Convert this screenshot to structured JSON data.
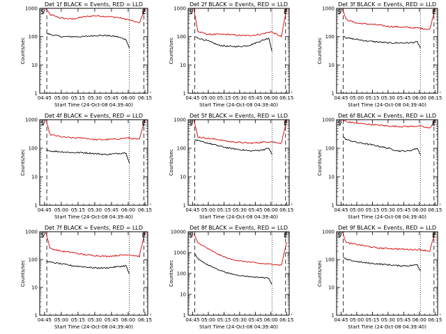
{
  "chart_data": [
    {
      "type": "line",
      "title": "Det 1f BLACK = Events, RED = LLD",
      "xlabel": "Start Time (24-Oct-08 04:39:40)",
      "ylabel": "Counts/sec",
      "y_scale": "log",
      "ylim": [
        1,
        1000
      ],
      "y_ticks": [
        "1",
        "10",
        "100",
        "1000"
      ],
      "x_ticks": [
        "04:45",
        "05:00",
        "05:15",
        "05:30",
        "05:45",
        "06:00",
        "06:15"
      ],
      "markers": [
        {
          "label": "S",
          "x": "04:40"
        },
        {
          "label": "E",
          "x": "06:14"
        }
      ],
      "vlines": [
        {
          "x": "04:47",
          "style": "dashed"
        },
        {
          "x": "06:01",
          "style": "dotted"
        },
        {
          "x": "06:14",
          "style": "dashed"
        }
      ],
      "series": [
        {
          "color": "#d40000",
          "x": [
            "04:46",
            "04:50",
            "05:00",
            "05:10",
            "05:20",
            "05:30",
            "05:40",
            "05:50",
            "06:00",
            "06:10",
            "06:15"
          ],
          "values": [
            1000,
            600,
            450,
            420,
            500,
            550,
            520,
            480,
            400,
            300,
            1000
          ]
        },
        {
          "color": "#000000",
          "x": [
            "04:47",
            "04:50",
            "05:00",
            "05:10",
            "05:20",
            "05:30",
            "05:40",
            "05:50",
            "05:58",
            "06:01"
          ],
          "values": [
            130,
            120,
            100,
            100,
            100,
            110,
            110,
            100,
            80,
            40
          ]
        }
      ]
    },
    {
      "type": "line",
      "title": "Det 2f BLACK = Events, RED = LLD",
      "xlabel": "Start Time (24-Oct-08 04:39:40)",
      "ylabel": "Counts/sec",
      "y_scale": "log",
      "ylim": [
        1,
        1000
      ],
      "y_ticks": [
        "1",
        "10",
        "100",
        "1000"
      ],
      "x_ticks": [
        "04:45",
        "05:00",
        "05:15",
        "05:30",
        "05:45",
        "06:00",
        "06:15"
      ],
      "markers": [
        {
          "label": "S",
          "x": "04:40"
        },
        {
          "label": "E",
          "x": "06:14"
        }
      ],
      "vlines": [
        {
          "x": "04:47",
          "style": "dashed"
        },
        {
          "x": "06:01",
          "style": "dotted"
        },
        {
          "x": "06:14",
          "style": "dashed"
        }
      ],
      "series": [
        {
          "color": "#d40000",
          "x": [
            "04:46",
            "04:50",
            "05:00",
            "05:10",
            "05:20",
            "05:30",
            "05:40",
            "05:50",
            "06:00",
            "06:10",
            "06:15"
          ],
          "values": [
            1000,
            150,
            120,
            120,
            120,
            110,
            110,
            120,
            150,
            100,
            1000
          ]
        },
        {
          "color": "#000000",
          "x": [
            "04:47",
            "04:50",
            "05:00",
            "05:10",
            "05:20",
            "05:30",
            "05:40",
            "05:50",
            "05:58",
            "06:01"
          ],
          "values": [
            100,
            90,
            70,
            50,
            45,
            45,
            50,
            70,
            90,
            30
          ]
        }
      ]
    },
    {
      "type": "line",
      "title": "Det 3f BLACK = Events, RED = LLD",
      "xlabel": "Start Time (24-Oct-08 04:39:40)",
      "ylabel": "Counts/sec",
      "y_scale": "log",
      "ylim": [
        1,
        1000
      ],
      "y_ticks": [
        "1",
        "10",
        "100",
        "1000"
      ],
      "x_ticks": [
        "04:45",
        "05:00",
        "05:15",
        "05:30",
        "05:45",
        "06:00",
        "06:15"
      ],
      "markers": [
        {
          "label": "S",
          "x": "04:40"
        },
        {
          "label": "E",
          "x": "06:14"
        }
      ],
      "vlines": [
        {
          "x": "04:47",
          "style": "dashed"
        },
        {
          "x": "06:01",
          "style": "dotted"
        },
        {
          "x": "06:14",
          "style": "dashed"
        }
      ],
      "series": [
        {
          "color": "#d40000",
          "x": [
            "04:46",
            "04:50",
            "05:00",
            "05:10",
            "05:20",
            "05:30",
            "05:40",
            "05:50",
            "06:00",
            "06:10",
            "06:15"
          ],
          "values": [
            1000,
            400,
            300,
            280,
            260,
            230,
            220,
            210,
            200,
            180,
            1000
          ]
        },
        {
          "color": "#000000",
          "x": [
            "04:47",
            "04:50",
            "05:00",
            "05:10",
            "05:20",
            "05:30",
            "05:40",
            "05:50",
            "05:58",
            "06:01"
          ],
          "values": [
            110,
            90,
            80,
            70,
            65,
            60,
            60,
            60,
            65,
            40
          ]
        }
      ]
    },
    {
      "type": "line",
      "title": "Det 4f BLACK = Events, RED = LLD",
      "xlabel": "Start Time (24-Oct-08 04:39:40)",
      "ylabel": "Counts/sec",
      "y_scale": "log",
      "ylim": [
        1,
        1000
      ],
      "y_ticks": [
        "1",
        "10",
        "100",
        "1000"
      ],
      "x_ticks": [
        "04:45",
        "05:00",
        "05:15",
        "05:30",
        "05:45",
        "06:00",
        "06:15"
      ],
      "markers": [
        {
          "label": "S",
          "x": "04:40"
        },
        {
          "label": "E",
          "x": "06:14"
        }
      ],
      "vlines": [
        {
          "x": "04:47",
          "style": "dashed"
        },
        {
          "x": "06:01",
          "style": "dotted"
        },
        {
          "x": "06:14",
          "style": "dashed"
        }
      ],
      "series": [
        {
          "color": "#d40000",
          "x": [
            "04:46",
            "04:50",
            "05:00",
            "05:10",
            "05:20",
            "05:30",
            "05:40",
            "05:50",
            "06:00",
            "06:10",
            "06:15"
          ],
          "values": [
            1000,
            300,
            250,
            230,
            230,
            200,
            200,
            210,
            230,
            200,
            1000
          ]
        },
        {
          "color": "#000000",
          "x": [
            "04:47",
            "04:50",
            "05:00",
            "05:10",
            "05:20",
            "05:30",
            "05:40",
            "05:50",
            "05:58",
            "06:01"
          ],
          "values": [
            90,
            80,
            75,
            70,
            70,
            65,
            60,
            65,
            70,
            30
          ]
        }
      ]
    },
    {
      "type": "line",
      "title": "Det 5f BLACK = Events, RED = LLD",
      "xlabel": "Start Time (24-Oct-08 04:39:40)",
      "ylabel": "Counts/sec",
      "y_scale": "log",
      "ylim": [
        1,
        1000
      ],
      "y_ticks": [
        "1",
        "10",
        "100",
        "1000"
      ],
      "x_ticks": [
        "04:45",
        "05:00",
        "05:15",
        "05:30",
        "05:45",
        "06:00",
        "06:15"
      ],
      "markers": [
        {
          "label": "S",
          "x": "04:40"
        },
        {
          "label": "E",
          "x": "06:14"
        }
      ],
      "vlines": [
        {
          "x": "04:47",
          "style": "dashed"
        },
        {
          "x": "06:01",
          "style": "dotted"
        },
        {
          "x": "06:14",
          "style": "dashed"
        }
      ],
      "series": [
        {
          "color": "#d40000",
          "x": [
            "04:46",
            "04:50",
            "05:00",
            "05:10",
            "05:20",
            "05:30",
            "05:40",
            "05:50",
            "06:00",
            "06:10",
            "06:15"
          ],
          "values": [
            1000,
            250,
            220,
            200,
            170,
            160,
            150,
            160,
            170,
            150,
            1000
          ]
        },
        {
          "color": "#000000",
          "x": [
            "04:47",
            "04:50",
            "05:00",
            "05:10",
            "05:20",
            "05:30",
            "05:40",
            "05:50",
            "05:58",
            "06:01"
          ],
          "values": [
            200,
            180,
            150,
            120,
            100,
            90,
            80,
            85,
            100,
            60
          ]
        }
      ]
    },
    {
      "type": "line",
      "title": "Det 6f BLACK = Events, RED = LLD",
      "xlabel": "Start Time (24-Oct-08 04:39:40)",
      "ylabel": "Counts/sec",
      "y_scale": "log",
      "ylim": [
        1,
        1000
      ],
      "y_ticks": [
        "1",
        "10",
        "100",
        "1000"
      ],
      "x_ticks": [
        "04:45",
        "05:00",
        "05:15",
        "05:30",
        "05:45",
        "06:00",
        "06:15"
      ],
      "markers": [
        {
          "label": "S",
          "x": "04:40"
        },
        {
          "label": "E",
          "x": "06:14"
        }
      ],
      "vlines": [
        {
          "x": "04:47",
          "style": "dashed"
        },
        {
          "x": "06:01",
          "style": "dotted"
        },
        {
          "x": "06:14",
          "style": "dashed"
        }
      ],
      "series": [
        {
          "color": "#d40000",
          "x": [
            "04:46",
            "04:50",
            "05:00",
            "05:10",
            "05:20",
            "05:30",
            "05:40",
            "05:50",
            "06:00",
            "06:10",
            "06:15"
          ],
          "values": [
            1000,
            850,
            750,
            700,
            650,
            600,
            580,
            580,
            600,
            500,
            1000
          ]
        },
        {
          "color": "#000000",
          "x": [
            "04:47",
            "04:50",
            "05:00",
            "05:10",
            "05:20",
            "05:30",
            "05:40",
            "05:50",
            "05:58",
            "06:01"
          ],
          "values": [
            250,
            200,
            160,
            140,
            120,
            100,
            80,
            80,
            100,
            60
          ]
        }
      ]
    },
    {
      "type": "line",
      "title": "Det 7f BLACK = Events, RED = LLD",
      "xlabel": "Start Time (24-Oct-08 04:39:40)",
      "ylabel": "Counts/sec",
      "y_scale": "log",
      "ylim": [
        1,
        1000
      ],
      "y_ticks": [
        "1",
        "10",
        "100",
        "1000"
      ],
      "x_ticks": [
        "04:45",
        "05:00",
        "05:15",
        "05:30",
        "05:45",
        "06:00",
        "06:15"
      ],
      "markers": [
        {
          "label": "S",
          "x": "04:40"
        },
        {
          "label": "E",
          "x": "06:14"
        }
      ],
      "vlines": [
        {
          "x": "04:47",
          "style": "dashed"
        },
        {
          "x": "06:01",
          "style": "dotted"
        },
        {
          "x": "06:14",
          "style": "dashed"
        }
      ],
      "series": [
        {
          "color": "#d40000",
          "x": [
            "04:46",
            "04:50",
            "05:00",
            "05:10",
            "05:20",
            "05:30",
            "05:40",
            "05:50",
            "06:00",
            "06:10",
            "06:15"
          ],
          "values": [
            1000,
            250,
            200,
            180,
            150,
            140,
            130,
            140,
            150,
            130,
            1000
          ]
        },
        {
          "color": "#000000",
          "x": [
            "04:47",
            "04:50",
            "05:00",
            "05:10",
            "05:20",
            "05:30",
            "05:40",
            "05:50",
            "05:58",
            "06:01"
          ],
          "values": [
            90,
            80,
            70,
            60,
            55,
            50,
            50,
            55,
            60,
            30
          ]
        }
      ]
    },
    {
      "type": "line",
      "title": "Det 8f BLACK = Events, RED = LLD",
      "xlabel": "Start Time (24-Oct-08 04:39:40)",
      "ylabel": "Counts/sec",
      "y_scale": "log",
      "ylim": [
        1,
        10000
      ],
      "y_ticks": [
        "1",
        "10",
        "100",
        "1000",
        "10000"
      ],
      "x_ticks": [
        "04:45",
        "05:00",
        "05:15",
        "05:30",
        "05:45",
        "06:00",
        "06:15"
      ],
      "markers": [
        {
          "label": "S",
          "x": "04:40"
        },
        {
          "label": "E",
          "x": "06:14"
        }
      ],
      "vlines": [
        {
          "x": "04:47",
          "style": "dashed"
        },
        {
          "x": "06:01",
          "style": "dotted"
        },
        {
          "x": "06:14",
          "style": "dashed"
        }
      ],
      "series": [
        {
          "color": "#d40000",
          "x": [
            "04:46",
            "04:50",
            "05:00",
            "05:10",
            "05:20",
            "05:30",
            "05:40",
            "05:50",
            "06:00",
            "06:10",
            "06:15"
          ],
          "values": [
            8000,
            3000,
            1500,
            800,
            500,
            400,
            350,
            300,
            280,
            250,
            3000
          ]
        },
        {
          "color": "#000000",
          "x": [
            "04:47",
            "04:50",
            "05:00",
            "05:10",
            "05:20",
            "05:30",
            "05:40",
            "05:50",
            "05:58",
            "06:01"
          ],
          "values": [
            900,
            500,
            250,
            150,
            100,
            80,
            70,
            65,
            60,
            30
          ]
        }
      ]
    },
    {
      "type": "line",
      "title": "Det 9f BLACK = Events, RED = LLD",
      "xlabel": "Start Time (24-Oct-08 04:39:40)",
      "ylabel": "Counts/sec",
      "y_scale": "log",
      "ylim": [
        1,
        1000
      ],
      "y_ticks": [
        "1",
        "10",
        "100",
        "1000"
      ],
      "x_ticks": [
        "04:45",
        "05:00",
        "05:15",
        "05:30",
        "05:45",
        "06:00",
        "06:15"
      ],
      "markers": [
        {
          "label": "S",
          "x": "04:40"
        },
        {
          "label": "E",
          "x": "06:14"
        }
      ],
      "vlines": [
        {
          "x": "04:47",
          "style": "dashed"
        },
        {
          "x": "06:01",
          "style": "dotted"
        },
        {
          "x": "06:14",
          "style": "dashed"
        }
      ],
      "series": [
        {
          "color": "#d40000",
          "x": [
            "04:46",
            "04:50",
            "05:00",
            "05:10",
            "05:20",
            "05:30",
            "05:40",
            "05:50",
            "06:00",
            "06:10",
            "06:15"
          ],
          "values": [
            1000,
            400,
            350,
            300,
            260,
            250,
            240,
            230,
            230,
            200,
            1000
          ]
        },
        {
          "color": "#000000",
          "x": [
            "04:47",
            "04:50",
            "05:00",
            "05:10",
            "05:20",
            "05:30",
            "05:40",
            "05:50",
            "05:58",
            "06:01"
          ],
          "values": [
            120,
            100,
            85,
            75,
            70,
            65,
            60,
            60,
            65,
            40
          ]
        }
      ]
    }
  ]
}
